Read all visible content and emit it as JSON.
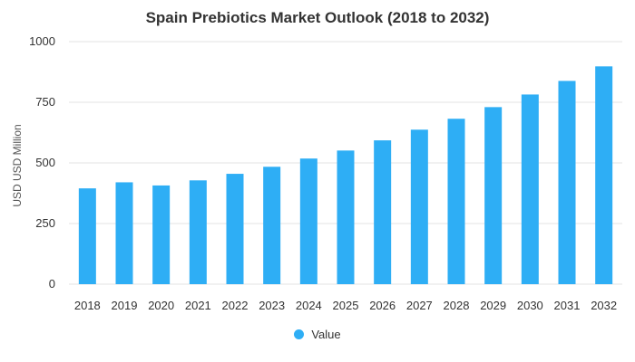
{
  "colors": {
    "bar": "#2eaef5",
    "grid": "#e3e3e3",
    "text": "#333333"
  },
  "chart_data": {
    "type": "bar",
    "title": "Spain Prebiotics Market Outlook (2018 to 2032)",
    "xlabel": "",
    "ylabel": "USD USD Million",
    "ylim": [
      0,
      1000
    ],
    "yticks": [
      0,
      250,
      500,
      750,
      1000
    ],
    "grid": true,
    "legend_position": "bottom-center",
    "categories": [
      "2018",
      "2019",
      "2020",
      "2021",
      "2022",
      "2023",
      "2024",
      "2025",
      "2026",
      "2027",
      "2028",
      "2029",
      "2030",
      "2031",
      "2032"
    ],
    "series": [
      {
        "name": "Value",
        "values": [
          395,
          420,
          407,
          428,
          455,
          484,
          518,
          551,
          593,
          637,
          682,
          730,
          782,
          838,
          898
        ]
      }
    ]
  }
}
